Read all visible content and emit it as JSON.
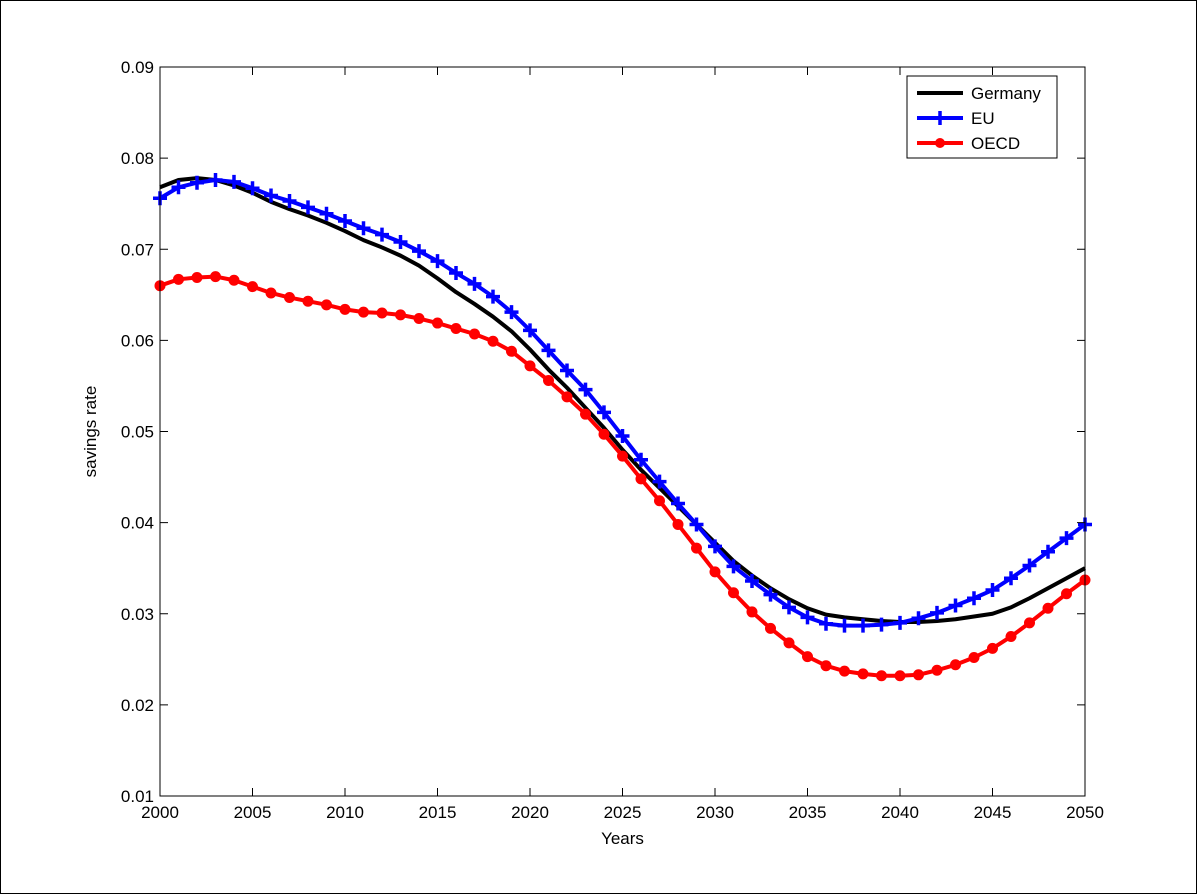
{
  "chart_data": {
    "type": "line",
    "title": "",
    "xlabel": "Years",
    "ylabel": "savings rate",
    "xlim": [
      2000,
      2050
    ],
    "ylim": [
      0.01,
      0.09
    ],
    "xticks": [
      2000,
      2005,
      2010,
      2015,
      2020,
      2025,
      2030,
      2035,
      2040,
      2045,
      2050
    ],
    "yticks": [
      0.01,
      0.02,
      0.03,
      0.04,
      0.05,
      0.06,
      0.07,
      0.08,
      0.09
    ],
    "xtick_labels": [
      "2000",
      "2005",
      "2010",
      "2015",
      "2020",
      "2025",
      "2030",
      "2035",
      "2040",
      "2045",
      "2050"
    ],
    "ytick_labels": [
      "0.01",
      "0.02",
      "0.03",
      "0.04",
      "0.05",
      "0.06",
      "0.07",
      "0.08",
      "0.09"
    ],
    "grid": false,
    "legend_position": "top-right",
    "x": [
      2000,
      2001,
      2002,
      2003,
      2004,
      2005,
      2006,
      2007,
      2008,
      2009,
      2010,
      2011,
      2012,
      2013,
      2014,
      2015,
      2016,
      2017,
      2018,
      2019,
      2020,
      2021,
      2022,
      2023,
      2024,
      2025,
      2026,
      2027,
      2028,
      2029,
      2030,
      2031,
      2032,
      2033,
      2034,
      2035,
      2036,
      2037,
      2038,
      2039,
      2040,
      2041,
      2042,
      2043,
      2044,
      2045,
      2046,
      2047,
      2048,
      2049,
      2050
    ],
    "series": [
      {
        "name": "Germany",
        "color": "#000000",
        "marker": "none",
        "values": [
          0.0768,
          0.0776,
          0.0778,
          0.0776,
          0.077,
          0.0762,
          0.0752,
          0.0744,
          0.0737,
          0.0729,
          0.072,
          0.071,
          0.0702,
          0.0693,
          0.0682,
          0.0668,
          0.0653,
          0.064,
          0.0626,
          0.061,
          0.059,
          0.0568,
          0.0548,
          0.0526,
          0.0504,
          0.048,
          0.0458,
          0.0438,
          0.0418,
          0.0398,
          0.0378,
          0.0358,
          0.0342,
          0.0328,
          0.0316,
          0.0306,
          0.0299,
          0.0296,
          0.0294,
          0.0292,
          0.0291,
          0.0291,
          0.0292,
          0.0294,
          0.0297,
          0.03,
          0.0307,
          0.0317,
          0.0328,
          0.0339,
          0.035
        ]
      },
      {
        "name": "EU",
        "color": "#0000ff",
        "marker": "plus",
        "values": [
          0.0756,
          0.0768,
          0.0773,
          0.0776,
          0.0774,
          0.0767,
          0.0759,
          0.0753,
          0.0746,
          0.0739,
          0.0731,
          0.0723,
          0.0716,
          0.0708,
          0.0698,
          0.0687,
          0.0674,
          0.0662,
          0.0648,
          0.0631,
          0.0611,
          0.0589,
          0.0567,
          0.0546,
          0.0521,
          0.0495,
          0.0469,
          0.0445,
          0.0421,
          0.0398,
          0.0374,
          0.0352,
          0.0336,
          0.0321,
          0.0307,
          0.0296,
          0.0289,
          0.0287,
          0.0287,
          0.0288,
          0.029,
          0.0295,
          0.0301,
          0.0309,
          0.0317,
          0.0326,
          0.0339,
          0.0353,
          0.0368,
          0.0383,
          0.0398
        ]
      },
      {
        "name": "OECD",
        "color": "#ff0000",
        "marker": "circle",
        "values": [
          0.066,
          0.0667,
          0.0669,
          0.067,
          0.0666,
          0.0659,
          0.0652,
          0.0647,
          0.0643,
          0.0639,
          0.0634,
          0.0631,
          0.063,
          0.0628,
          0.0624,
          0.0619,
          0.0613,
          0.0607,
          0.0599,
          0.0588,
          0.0572,
          0.0556,
          0.0538,
          0.0519,
          0.0497,
          0.0473,
          0.0448,
          0.0424,
          0.0398,
          0.0372,
          0.0346,
          0.0323,
          0.0302,
          0.0284,
          0.0268,
          0.0253,
          0.0243,
          0.0237,
          0.0234,
          0.0232,
          0.0232,
          0.0233,
          0.0238,
          0.0244,
          0.0252,
          0.0262,
          0.0275,
          0.029,
          0.0306,
          0.0322,
          0.0337
        ]
      }
    ]
  }
}
